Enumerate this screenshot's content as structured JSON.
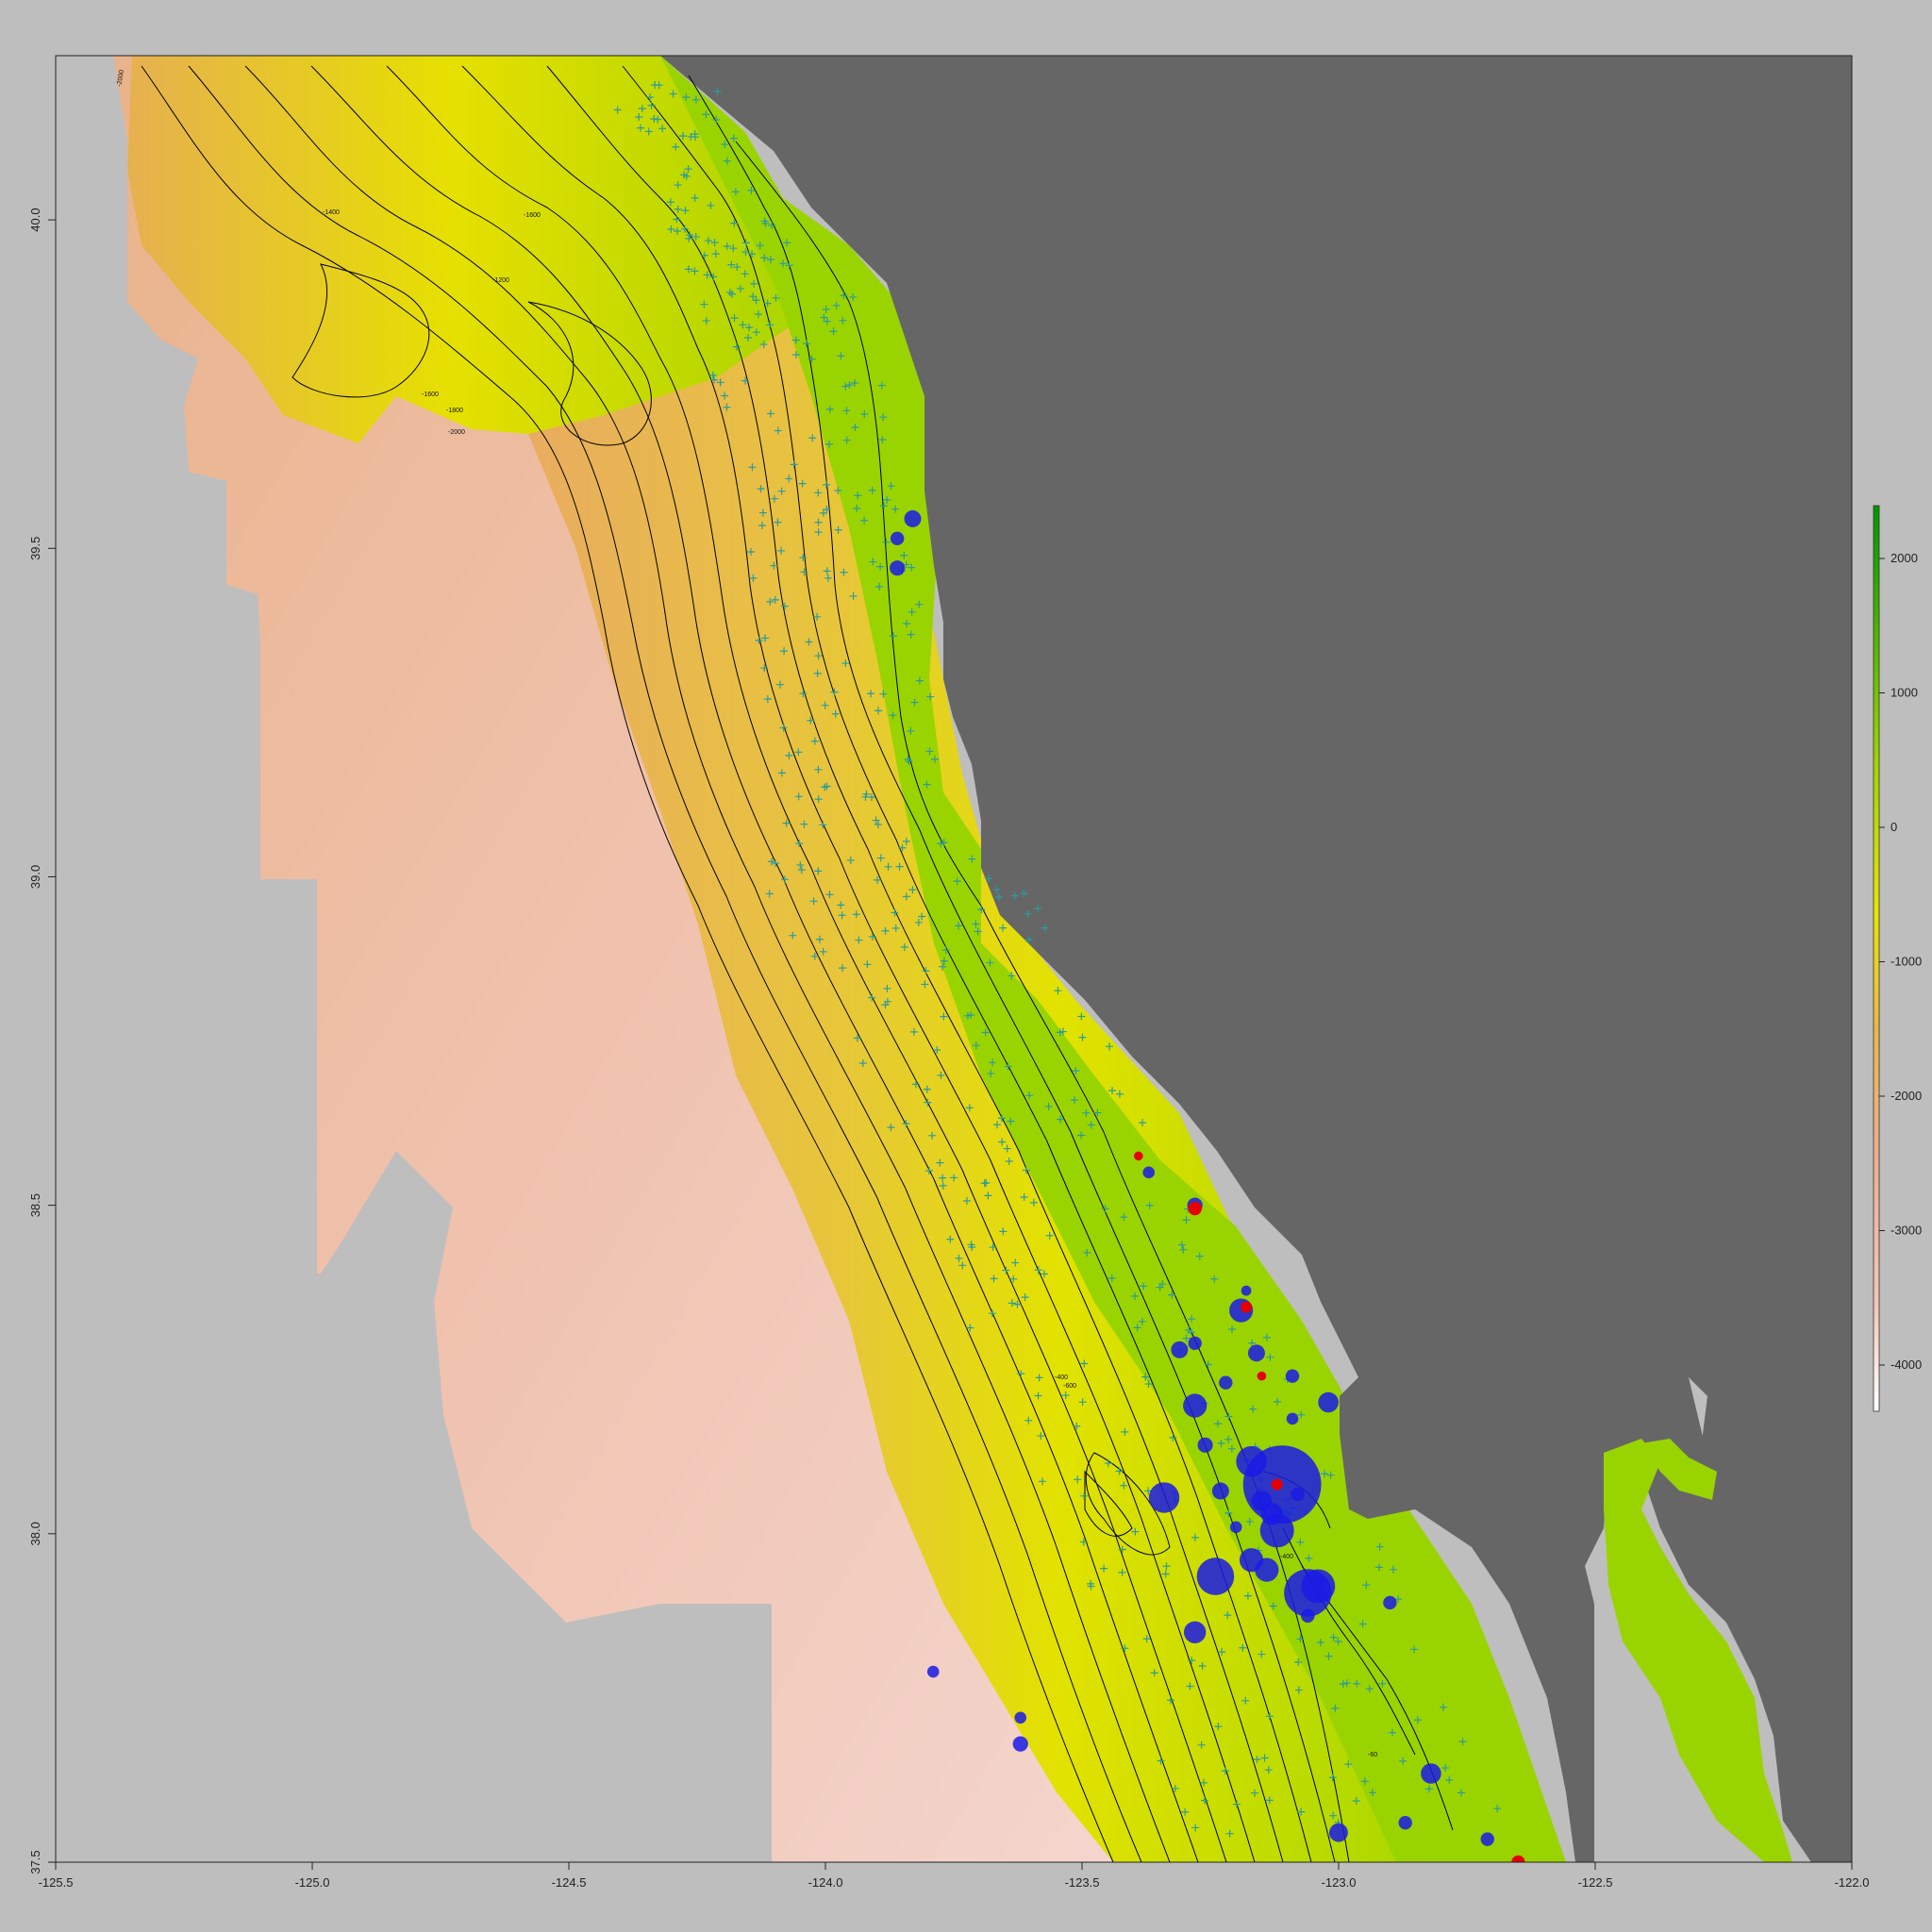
{
  "map": {
    "x_axis": {
      "ticks": [
        "-125.5",
        "-125.0",
        "-124.5",
        "-124.0",
        "-123.5",
        "-123.0",
        "-122.5",
        "-122.0"
      ],
      "range": [
        -125.5,
        -122.0
      ]
    },
    "y_axis": {
      "ticks": [
        "37.5",
        "38.0",
        "38.5",
        "39.0",
        "39.5",
        "40.0"
      ],
      "range": [
        37.5,
        40.25
      ]
    },
    "legend": {
      "placement": "right",
      "ticks": [
        "2000",
        "1000",
        "0",
        "-1000",
        "-2000",
        "-3000",
        "-4000"
      ],
      "colors": [
        "#ffffff",
        "#f2c4b4",
        "#e8a882",
        "#e9b84e",
        "#e6e600",
        "#9ad400",
        "#00a000"
      ]
    },
    "contour_labels": [
      "-2000",
      "-1400",
      "-1600",
      "-1200",
      "-1600",
      "-1800",
      "-2000",
      "-400",
      "-600",
      "-400",
      "-60"
    ],
    "colors": {
      "land": "#666666",
      "shelf": "#9ad400",
      "outside": "#bebebe",
      "blue_points": "#1a1ae6",
      "red_points": "#e60000",
      "crosses": "#2f9a9a",
      "contours": "#000000"
    },
    "blue_points": [
      {
        "lon": -123.83,
        "lat": 39.545,
        "r": 1.0
      },
      {
        "lon": -123.86,
        "lat": 39.515,
        "r": 0.8
      },
      {
        "lon": -123.86,
        "lat": 39.47,
        "r": 0.9
      },
      {
        "lon": -123.79,
        "lat": 37.79,
        "r": 0.7
      },
      {
        "lon": -123.62,
        "lat": 37.72,
        "r": 0.7
      },
      {
        "lon": -123.62,
        "lat": 37.68,
        "r": 0.9
      },
      {
        "lon": -123.37,
        "lat": 38.55,
        "r": 0.7
      },
      {
        "lon": -123.28,
        "lat": 38.5,
        "r": 0.9
      },
      {
        "lon": -123.18,
        "lat": 38.37,
        "r": 0.6
      },
      {
        "lon": -123.19,
        "lat": 38.34,
        "r": 1.4
      },
      {
        "lon": -123.31,
        "lat": 38.28,
        "r": 1.0
      },
      {
        "lon": -123.28,
        "lat": 38.29,
        "r": 0.8
      },
      {
        "lon": -123.16,
        "lat": 38.275,
        "r": 1.0
      },
      {
        "lon": -123.09,
        "lat": 38.24,
        "r": 0.8
      },
      {
        "lon": -123.22,
        "lat": 38.23,
        "r": 0.8
      },
      {
        "lon": -123.02,
        "lat": 38.2,
        "r": 1.2
      },
      {
        "lon": -123.28,
        "lat": 38.195,
        "r": 1.4
      },
      {
        "lon": -123.09,
        "lat": 38.175,
        "r": 0.7
      },
      {
        "lon": -123.26,
        "lat": 38.135,
        "r": 0.9
      },
      {
        "lon": -123.17,
        "lat": 38.11,
        "r": 1.8
      },
      {
        "lon": -123.11,
        "lat": 38.075,
        "r": 4.6
      },
      {
        "lon": -123.15,
        "lat": 38.05,
        "r": 1.2
      },
      {
        "lon": -123.08,
        "lat": 38.06,
        "r": 0.8
      },
      {
        "lon": -123.23,
        "lat": 38.065,
        "r": 1.0
      },
      {
        "lon": -123.34,
        "lat": 38.055,
        "r": 1.8
      },
      {
        "lon": -123.13,
        "lat": 38.03,
        "r": 1.3
      },
      {
        "lon": -123.2,
        "lat": 38.01,
        "r": 0.7
      },
      {
        "lon": -123.12,
        "lat": 38.005,
        "r": 2.0
      },
      {
        "lon": -123.17,
        "lat": 37.96,
        "r": 1.4
      },
      {
        "lon": -123.14,
        "lat": 37.945,
        "r": 1.4
      },
      {
        "lon": -123.24,
        "lat": 37.935,
        "r": 2.2
      },
      {
        "lon": -123.04,
        "lat": 37.92,
        "r": 2.0
      },
      {
        "lon": -123.06,
        "lat": 37.91,
        "r": 2.8
      },
      {
        "lon": -123.06,
        "lat": 37.875,
        "r": 0.8
      },
      {
        "lon": -122.9,
        "lat": 37.895,
        "r": 0.8
      },
      {
        "lon": -123.28,
        "lat": 37.85,
        "r": 1.3
      },
      {
        "lon": -122.82,
        "lat": 37.635,
        "r": 1.2
      },
      {
        "lon": -123.0,
        "lat": 37.545,
        "r": 1.1
      },
      {
        "lon": -122.87,
        "lat": 37.56,
        "r": 0.8
      },
      {
        "lon": -122.71,
        "lat": 37.535,
        "r": 0.8
      }
    ],
    "red_points": [
      {
        "lon": -123.39,
        "lat": 38.575,
        "r": 0.4
      },
      {
        "lon": -123.28,
        "lat": 38.495,
        "r": 0.6
      },
      {
        "lon": -123.18,
        "lat": 38.345,
        "r": 0.5
      },
      {
        "lon": -123.15,
        "lat": 38.24,
        "r": 0.4
      },
      {
        "lon": -123.12,
        "lat": 38.075,
        "r": 0.5
      },
      {
        "lon": -122.65,
        "lat": 37.5,
        "r": 0.6
      }
    ]
  }
}
